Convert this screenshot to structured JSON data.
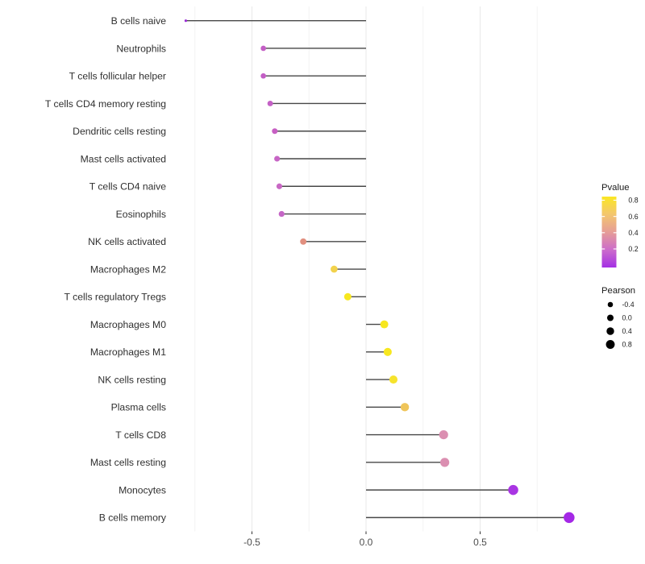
{
  "chart_data": {
    "type": "scatter",
    "subtype": "lollipop",
    "title": "",
    "xlabel": "",
    "ylabel": "",
    "xlim": [
      -0.85,
      1.0
    ],
    "grid": true,
    "x_ticks": [
      -0.5,
      0.0,
      0.5
    ],
    "x_tick_labels": [
      "-0.5",
      "0.0",
      "0.5"
    ],
    "x_minor_ticks": [
      -0.75,
      -0.25,
      0.25,
      0.75
    ],
    "categories": [
      "B cells naive",
      "Neutrophils",
      "T cells follicular helper",
      "T cells CD4 memory resting",
      "Dendritic cells resting",
      "Mast cells activated",
      "T cells CD4 naive",
      "Eosinophils",
      "NK cells activated",
      "Macrophages M2",
      "T cells regulatory  Tregs",
      "Macrophages M0",
      "Macrophages M1",
      "NK cells resting",
      "Plasma cells",
      "T cells CD8",
      "Mast cells resting",
      "Monocytes",
      "B cells memory"
    ],
    "points": [
      {
        "category": "B cells naive",
        "pearson": -0.79,
        "pvalue": 0.02,
        "color": "#9A2BD6"
      },
      {
        "category": "Neutrophils",
        "pearson": -0.45,
        "pvalue": 0.2,
        "color": "#C35EC5"
      },
      {
        "category": "T cells follicular helper",
        "pearson": -0.45,
        "pvalue": 0.2,
        "color": "#C35EC5"
      },
      {
        "category": "T cells CD4 memory resting",
        "pearson": -0.42,
        "pvalue": 0.21,
        "color": "#C461C6"
      },
      {
        "category": "Dendritic cells resting",
        "pearson": -0.4,
        "pvalue": 0.21,
        "color": "#C75FC3"
      },
      {
        "category": "Mast cells activated",
        "pearson": -0.39,
        "pvalue": 0.22,
        "color": "#C765C5"
      },
      {
        "category": "T cells CD4 naive",
        "pearson": -0.38,
        "pvalue": 0.22,
        "color": "#C868C4"
      },
      {
        "category": "Eosinophils",
        "pearson": -0.37,
        "pvalue": 0.22,
        "color": "#C566C6"
      },
      {
        "category": "NK cells activated",
        "pearson": -0.275,
        "pvalue": 0.45,
        "color": "#E18F7F"
      },
      {
        "category": "Macrophages M2",
        "pearson": -0.14,
        "pvalue": 0.68,
        "color": "#F2D24C"
      },
      {
        "category": "T cells regulatory  Tregs",
        "pearson": -0.08,
        "pvalue": 0.8,
        "color": "#F7E71F"
      },
      {
        "category": "Macrophages M0",
        "pearson": 0.08,
        "pvalue": 0.8,
        "color": "#F7E71F"
      },
      {
        "category": "Macrophages M1",
        "pearson": 0.095,
        "pvalue": 0.8,
        "color": "#F7E71F"
      },
      {
        "category": "NK cells resting",
        "pearson": 0.12,
        "pvalue": 0.78,
        "color": "#F6E32C"
      },
      {
        "category": "Plasma cells",
        "pearson": 0.17,
        "pvalue": 0.64,
        "color": "#EFC55A"
      },
      {
        "category": "T cells CD8",
        "pearson": 0.34,
        "pvalue": 0.38,
        "color": "#DB8FB1"
      },
      {
        "category": "Mast cells resting",
        "pearson": 0.345,
        "pvalue": 0.38,
        "color": "#DB8FB1"
      },
      {
        "category": "Monocytes",
        "pearson": 0.645,
        "pvalue": 0.05,
        "color": "#A935E3"
      },
      {
        "category": "B cells memory",
        "pearson": 0.89,
        "pvalue": 0.03,
        "color": "#A428E6"
      }
    ],
    "legend": {
      "position": "right",
      "pvalue": {
        "title": "Pvalue",
        "tick_values": [
          0.8,
          0.6,
          0.4,
          0.2
        ],
        "tick_labels": [
          "0.8",
          "0.6",
          "0.4",
          "0.2"
        ],
        "gradient_top_to_bottom": [
          "#FBE723",
          "#F3C66E",
          "#E69D97",
          "#CC6CCB",
          "#A430E4"
        ]
      },
      "pearson": {
        "title": "Pearson",
        "size_values": [
          -0.4,
          0.0,
          0.4,
          0.8
        ],
        "size_labels": [
          "-0.4",
          "0.0",
          "0.4",
          "0.8"
        ],
        "dot_color": "#000000"
      }
    },
    "style": {
      "background": "#FFFFFF",
      "grid_major_color": "#E8E8E8",
      "grid_minor_color": "#F3F3F3",
      "stem_color": "#474747",
      "axis_tick_color": "#333333",
      "axis_text_color": "#4D4D4D",
      "category_text_color": "#303030",
      "legend_text_color": "#1A1A1A"
    }
  }
}
